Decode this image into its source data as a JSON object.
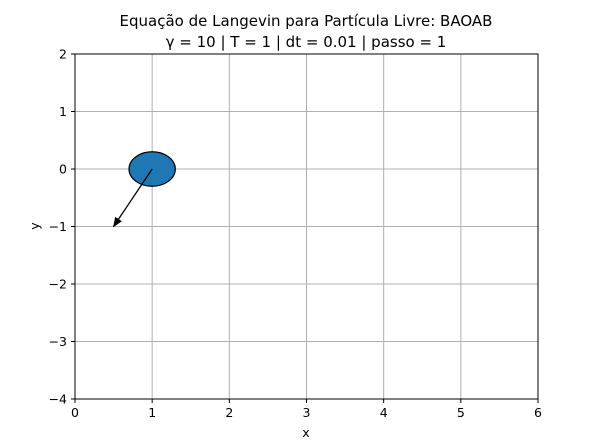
{
  "chart_data": {
    "type": "scatter",
    "title": "Equação de Langevin para Partícula Livre: BAOAB",
    "subtitle": "γ = 10 | T = 1 | dt = 0.01 | passo = 1",
    "xlabel": "x",
    "ylabel": "y",
    "xlim": [
      0,
      6
    ],
    "ylim": [
      -4,
      2
    ],
    "xticks": [
      0,
      1,
      2,
      3,
      4,
      5,
      6
    ],
    "yticks": [
      2,
      1,
      0,
      -1,
      -2,
      -3,
      -4
    ],
    "xtick_labels": [
      "0",
      "1",
      "2",
      "3",
      "4",
      "5",
      "6"
    ],
    "ytick_labels": [
      "2",
      "1",
      "0",
      "−1",
      "−2",
      "−3",
      "−4"
    ],
    "grid": true,
    "particle": {
      "x": 1.0,
      "y": 0.0,
      "radius": 0.3,
      "color": "#1f77b4",
      "edge_color": "#000000"
    },
    "velocity_arrow": {
      "from": [
        1.0,
        0.0
      ],
      "to": [
        0.5,
        -1.0
      ],
      "color": "#000000"
    }
  }
}
